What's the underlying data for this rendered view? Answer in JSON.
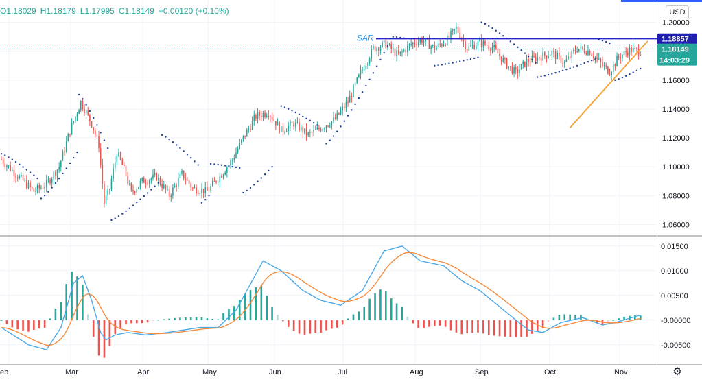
{
  "legend": {
    "open": "O1.18029",
    "high": "H1.18179",
    "low": "L1.17995",
    "close": "C1.18149",
    "change": "+0.00120 (+0.10%)"
  },
  "currency_button": "USD",
  "settings_icon": "gear-icon",
  "colors": {
    "up": "#26a69a",
    "down": "#ef5350",
    "sar": "#1f3d99",
    "sar_line": "#2626c9",
    "trendline": "#f7a53b",
    "macd": "#4aa8e8",
    "signal": "#f58a3c",
    "hist_up_strong": "#26a69a",
    "hist_up_weak": "#b2dfdb",
    "hist_down_strong": "#ef5350",
    "hist_down_weak": "#ffcdd2"
  },
  "price_axis": {
    "ticks": [
      "1.20000",
      "1.18000",
      "1.16000",
      "1.14000",
      "1.12000",
      "1.10000",
      "1.08000",
      "1.06000"
    ],
    "sar_label": "1.18857",
    "last_price": "1.18149",
    "countdown": "14:03:29"
  },
  "macd_axis": {
    "ticks": [
      "0.01500",
      "0.01000",
      "0.00500",
      "-0.00000",
      "-0.00500"
    ]
  },
  "time_axis": {
    "labels": [
      "eb",
      "Mar",
      "Apr",
      "May",
      "Jun",
      "Jul",
      "Aug",
      "Sep",
      "Oct",
      "Nov"
    ]
  },
  "annotations": {
    "sar_text": "SAR"
  },
  "chart_data": {
    "type": "candlestick",
    "symbol_quote": "USD",
    "ylim": [
      1.054,
      1.206
    ],
    "macd_ylim": [
      -0.0085,
      0.0165
    ],
    "sar_level": 1.18857,
    "last_price": 1.18149,
    "anchors": [
      [
        0,
        1.105
      ],
      [
        8,
        1.095
      ],
      [
        18,
        1.083
      ],
      [
        25,
        1.088
      ],
      [
        32,
        1.1
      ],
      [
        38,
        1.125
      ],
      [
        44,
        1.145
      ],
      [
        50,
        1.13
      ],
      [
        54,
        1.115
      ],
      [
        57,
        1.075
      ],
      [
        60,
        1.085
      ],
      [
        64,
        1.11
      ],
      [
        68,
        1.098
      ],
      [
        72,
        1.082
      ],
      [
        78,
        1.09
      ],
      [
        86,
        1.093
      ],
      [
        93,
        1.08
      ],
      [
        100,
        1.095
      ],
      [
        106,
        1.085
      ],
      [
        114,
        1.083
      ],
      [
        122,
        1.095
      ],
      [
        128,
        1.105
      ],
      [
        134,
        1.12
      ],
      [
        141,
        1.135
      ],
      [
        148,
        1.138
      ],
      [
        155,
        1.125
      ],
      [
        162,
        1.13
      ],
      [
        170,
        1.122
      ],
      [
        177,
        1.127
      ],
      [
        185,
        1.133
      ],
      [
        192,
        1.145
      ],
      [
        199,
        1.165
      ],
      [
        206,
        1.182
      ],
      [
        213,
        1.185
      ],
      [
        220,
        1.177
      ],
      [
        227,
        1.185
      ],
      [
        233,
        1.188
      ],
      [
        240,
        1.182
      ],
      [
        247,
        1.188
      ],
      [
        252,
        1.196
      ],
      [
        258,
        1.182
      ],
      [
        265,
        1.186
      ],
      [
        272,
        1.183
      ],
      [
        279,
        1.172
      ],
      [
        285,
        1.165
      ],
      [
        291,
        1.173
      ],
      [
        298,
        1.176
      ],
      [
        305,
        1.179
      ],
      [
        312,
        1.172
      ],
      [
        319,
        1.182
      ],
      [
        326,
        1.18
      ],
      [
        333,
        1.17
      ],
      [
        337,
        1.166
      ],
      [
        342,
        1.176
      ],
      [
        348,
        1.181
      ],
      [
        354,
        1.18
      ]
    ],
    "macd_anchors": [
      [
        0,
        -0.0015
      ],
      [
        15,
        -0.005
      ],
      [
        25,
        -0.006
      ],
      [
        33,
        -0.0015
      ],
      [
        40,
        0.0075
      ],
      [
        45,
        0.009
      ],
      [
        50,
        0.004
      ],
      [
        55,
        -0.0025
      ],
      [
        58,
        -0.004
      ],
      [
        63,
        -0.003
      ],
      [
        70,
        -0.0025
      ],
      [
        80,
        -0.003
      ],
      [
        92,
        -0.0025
      ],
      [
        110,
        -0.0015
      ],
      [
        120,
        -0.0015
      ],
      [
        130,
        0.002
      ],
      [
        145,
        0.012
      ],
      [
        155,
        0.01
      ],
      [
        167,
        0.006
      ],
      [
        177,
        0.004
      ],
      [
        188,
        0.003
      ],
      [
        200,
        0.006
      ],
      [
        212,
        0.014
      ],
      [
        222,
        0.015
      ],
      [
        232,
        0.012
      ],
      [
        245,
        0.011
      ],
      [
        255,
        0.008
      ],
      [
        265,
        0.006
      ],
      [
        275,
        0.003
      ],
      [
        285,
        0.0
      ],
      [
        292,
        -0.002
      ],
      [
        300,
        -0.0025
      ],
      [
        310,
        -0.0005
      ],
      [
        322,
        0.0005
      ],
      [
        333,
        -0.001
      ],
      [
        340,
        -0.0005
      ],
      [
        354,
        0.001
      ]
    ],
    "sar_segments": [
      {
        "from": 0,
        "to": 20,
        "start": 1.109,
        "end": 1.092,
        "side": "above"
      },
      {
        "from": 22,
        "to": 42,
        "start": 1.078,
        "end": 1.11,
        "side": "below"
      },
      {
        "from": 43,
        "to": 60,
        "start": 1.15,
        "end": 1.11,
        "side": "above"
      },
      {
        "from": 61,
        "to": 88,
        "start": 1.063,
        "end": 1.09,
        "side": "below"
      },
      {
        "from": 89,
        "to": 110,
        "start": 1.122,
        "end": 1.1,
        "side": "above"
      },
      {
        "from": 111,
        "to": 115,
        "start": 1.075,
        "end": 1.08,
        "side": "below"
      },
      {
        "from": 116,
        "to": 133,
        "start": 1.102,
        "end": 1.099,
        "side": "above"
      },
      {
        "from": 134,
        "to": 150,
        "start": 1.082,
        "end": 1.1,
        "side": "below"
      },
      {
        "from": 155,
        "to": 176,
        "start": 1.142,
        "end": 1.128,
        "side": "above"
      },
      {
        "from": 180,
        "to": 215,
        "start": 1.116,
        "end": 1.186,
        "side": "below"
      },
      {
        "from": 217,
        "to": 223,
        "start": 1.19,
        "end": 1.189,
        "side": "above"
      },
      {
        "from": 240,
        "to": 265,
        "start": 1.17,
        "end": 1.176,
        "side": "below"
      },
      {
        "from": 266,
        "to": 296,
        "start": 1.2,
        "end": 1.172,
        "side": "above"
      },
      {
        "from": 297,
        "to": 330,
        "start": 1.162,
        "end": 1.175,
        "side": "below"
      },
      {
        "from": 331,
        "to": 338,
        "start": 1.188,
        "end": 1.185,
        "side": "above"
      },
      {
        "from": 340,
        "to": 354,
        "start": 1.16,
        "end": 1.168,
        "side": "below"
      }
    ],
    "trendline": {
      "from": [
        315,
        1.127
      ],
      "to": [
        358,
        1.187
      ]
    }
  }
}
